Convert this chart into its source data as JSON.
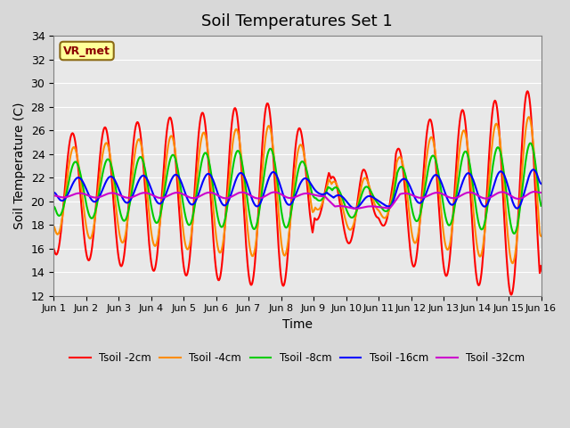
{
  "title": "Soil Temperatures Set 1",
  "xlabel": "Time",
  "ylabel": "Soil Temperature (C)",
  "ylim": [
    12,
    34
  ],
  "xlim": [
    0,
    15
  ],
  "xtick_labels": [
    "Jun 1",
    "Jun 2",
    "Jun 3",
    "Jun 4",
    "Jun 5",
    "Jun 6",
    "Jun 7",
    "Jun 8",
    "Jun 9",
    "Jun 10",
    "Jun 11",
    "Jun 12",
    "Jun 13",
    "Jun 14",
    "Jun 15",
    "Jun 16"
  ],
  "ytick_values": [
    12,
    14,
    16,
    18,
    20,
    22,
    24,
    26,
    28,
    30,
    32,
    34
  ],
  "legend_labels": [
    "Tsoil -2cm",
    "Tsoil -4cm",
    "Tsoil -8cm",
    "Tsoil -16cm",
    "Tsoil -32cm"
  ],
  "colors": [
    "#ff0000",
    "#ff8c00",
    "#00cc00",
    "#0000ff",
    "#cc00cc"
  ],
  "line_width": 1.5,
  "bg_color": "#e8e8e8",
  "plot_bg_color": "#e8e8e8",
  "annotation_text": "VR_met",
  "annotation_bg": "#ffff99",
  "annotation_border": "#8b6914"
}
